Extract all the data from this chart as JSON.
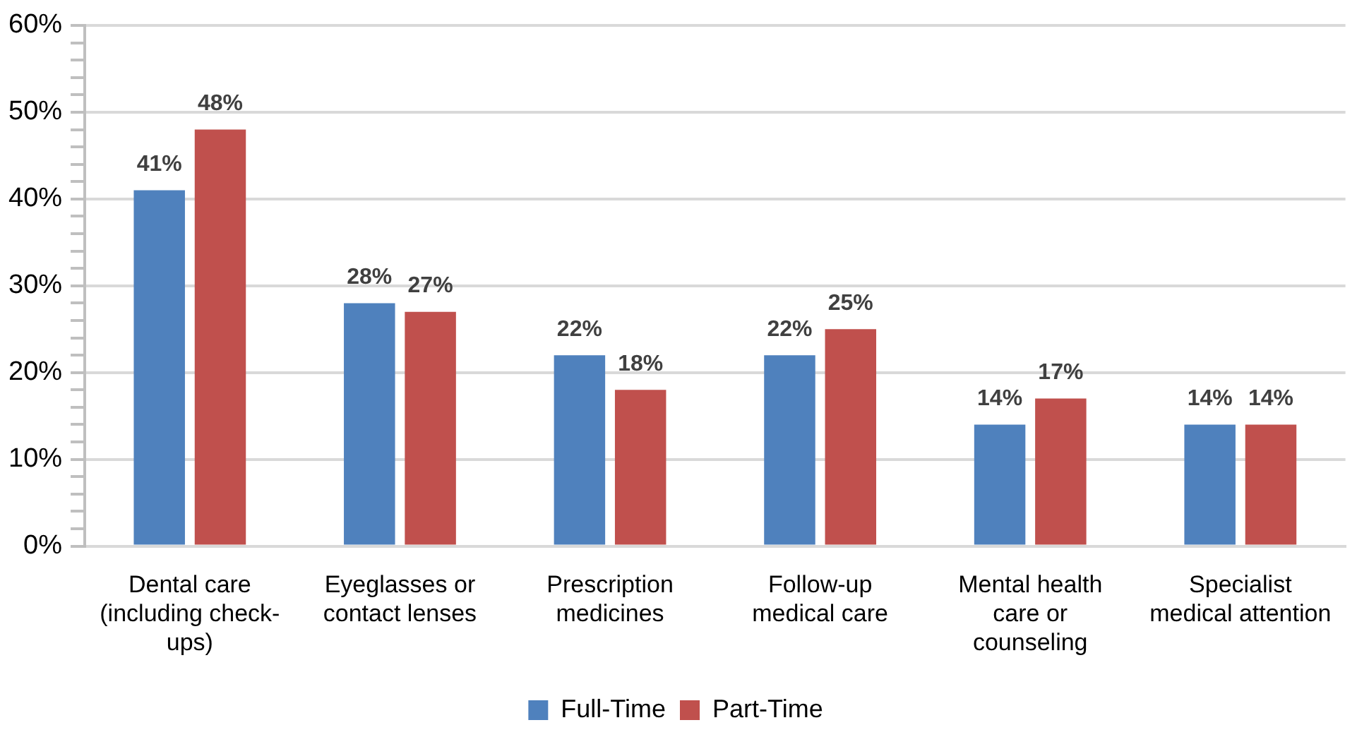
{
  "chart_data": {
    "type": "bar",
    "categories": [
      "Dental care (including check-ups)",
      "Eyeglasses or contact lenses",
      "Prescription medicines",
      "Follow-up medical care",
      "Mental health care or counseling",
      "Specialist medical attention"
    ],
    "series": [
      {
        "name": "Full-Time",
        "color": "#4f81bd",
        "values": [
          41,
          28,
          22,
          22,
          14,
          14
        ],
        "value_labels": [
          "41%",
          "28%",
          "22%",
          "22%",
          "14%",
          "14%"
        ]
      },
      {
        "name": "Part-Time",
        "color": "#c0504d",
        "values": [
          48,
          27,
          18,
          25,
          17,
          14
        ],
        "value_labels": [
          "48%",
          "27%",
          "18%",
          "25%",
          "17%",
          "14%"
        ]
      }
    ],
    "ylim": [
      0,
      60
    ],
    "yticks": [
      {
        "value": 0,
        "label": "0%"
      },
      {
        "value": 2,
        "label": null
      },
      {
        "value": 4,
        "label": null
      },
      {
        "value": 6,
        "label": null
      },
      {
        "value": 8,
        "label": null
      },
      {
        "value": 10,
        "label": "10%"
      },
      {
        "value": 12,
        "label": null
      },
      {
        "value": 14,
        "label": null
      },
      {
        "value": 16,
        "label": null
      },
      {
        "value": 18,
        "label": null
      },
      {
        "value": 20,
        "label": "20%"
      },
      {
        "value": 22,
        "label": null
      },
      {
        "value": 24,
        "label": null
      },
      {
        "value": 26,
        "label": null
      },
      {
        "value": 28,
        "label": null
      },
      {
        "value": 30,
        "label": "30%"
      },
      {
        "value": 32,
        "label": null
      },
      {
        "value": 34,
        "label": null
      },
      {
        "value": 36,
        "label": null
      },
      {
        "value": 38,
        "label": null
      },
      {
        "value": 40,
        "label": "40%"
      },
      {
        "value": 42,
        "label": null
      },
      {
        "value": 44,
        "label": null
      },
      {
        "value": 46,
        "label": null
      },
      {
        "value": 48,
        "label": null
      },
      {
        "value": 50,
        "label": "50%"
      },
      {
        "value": 52,
        "label": null
      },
      {
        "value": 54,
        "label": null
      },
      {
        "value": 56,
        "label": null
      },
      {
        "value": 58,
        "label": null
      },
      {
        "value": 60,
        "label": "60%"
      }
    ],
    "grid": "y",
    "legend": "bottom"
  }
}
